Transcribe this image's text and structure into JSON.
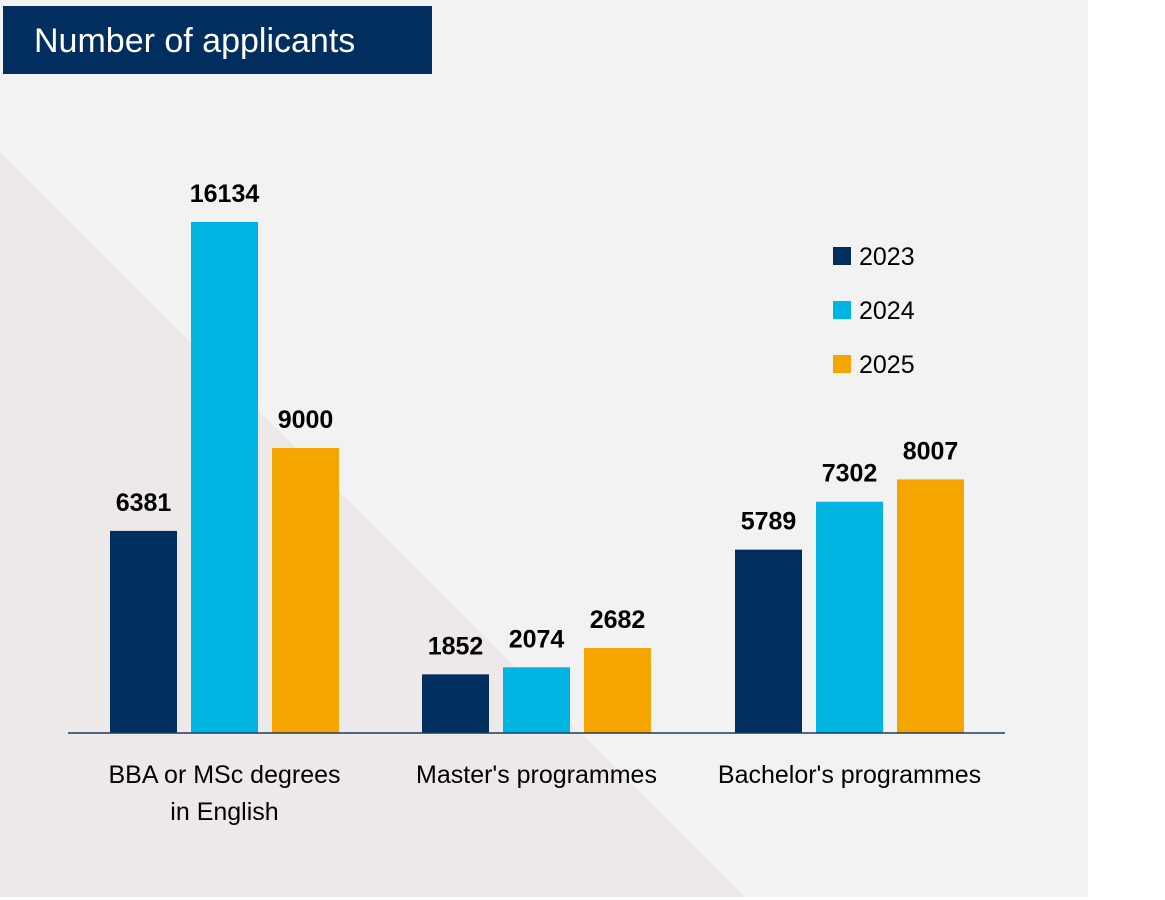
{
  "title": "Number of applicants",
  "colors": {
    "background": "#f2f2f2",
    "triangle": "#ede9e8",
    "title_bg": "#002f5f",
    "title_text": "#ffffff",
    "axis": "#1f3a5c"
  },
  "chart_data": {
    "type": "bar",
    "title": "Number of applicants",
    "xlabel": "",
    "ylabel": "",
    "ylim": [
      0,
      16134
    ],
    "grid": false,
    "legend_position": "top-right",
    "categories": [
      [
        "BBA or MSc degrees",
        "in English"
      ],
      [
        "Master's programmes"
      ],
      [
        "Bachelor's programmes"
      ]
    ],
    "series": [
      {
        "name": "2023",
        "color": "#002f5f",
        "values": [
          6381,
          1852,
          5789
        ]
      },
      {
        "name": "2024",
        "color": "#00b5e2",
        "values": [
          16134,
          2074,
          7302
        ]
      },
      {
        "name": "2025",
        "color": "#f5a500",
        "values": [
          9000,
          2682,
          8007
        ]
      }
    ]
  }
}
